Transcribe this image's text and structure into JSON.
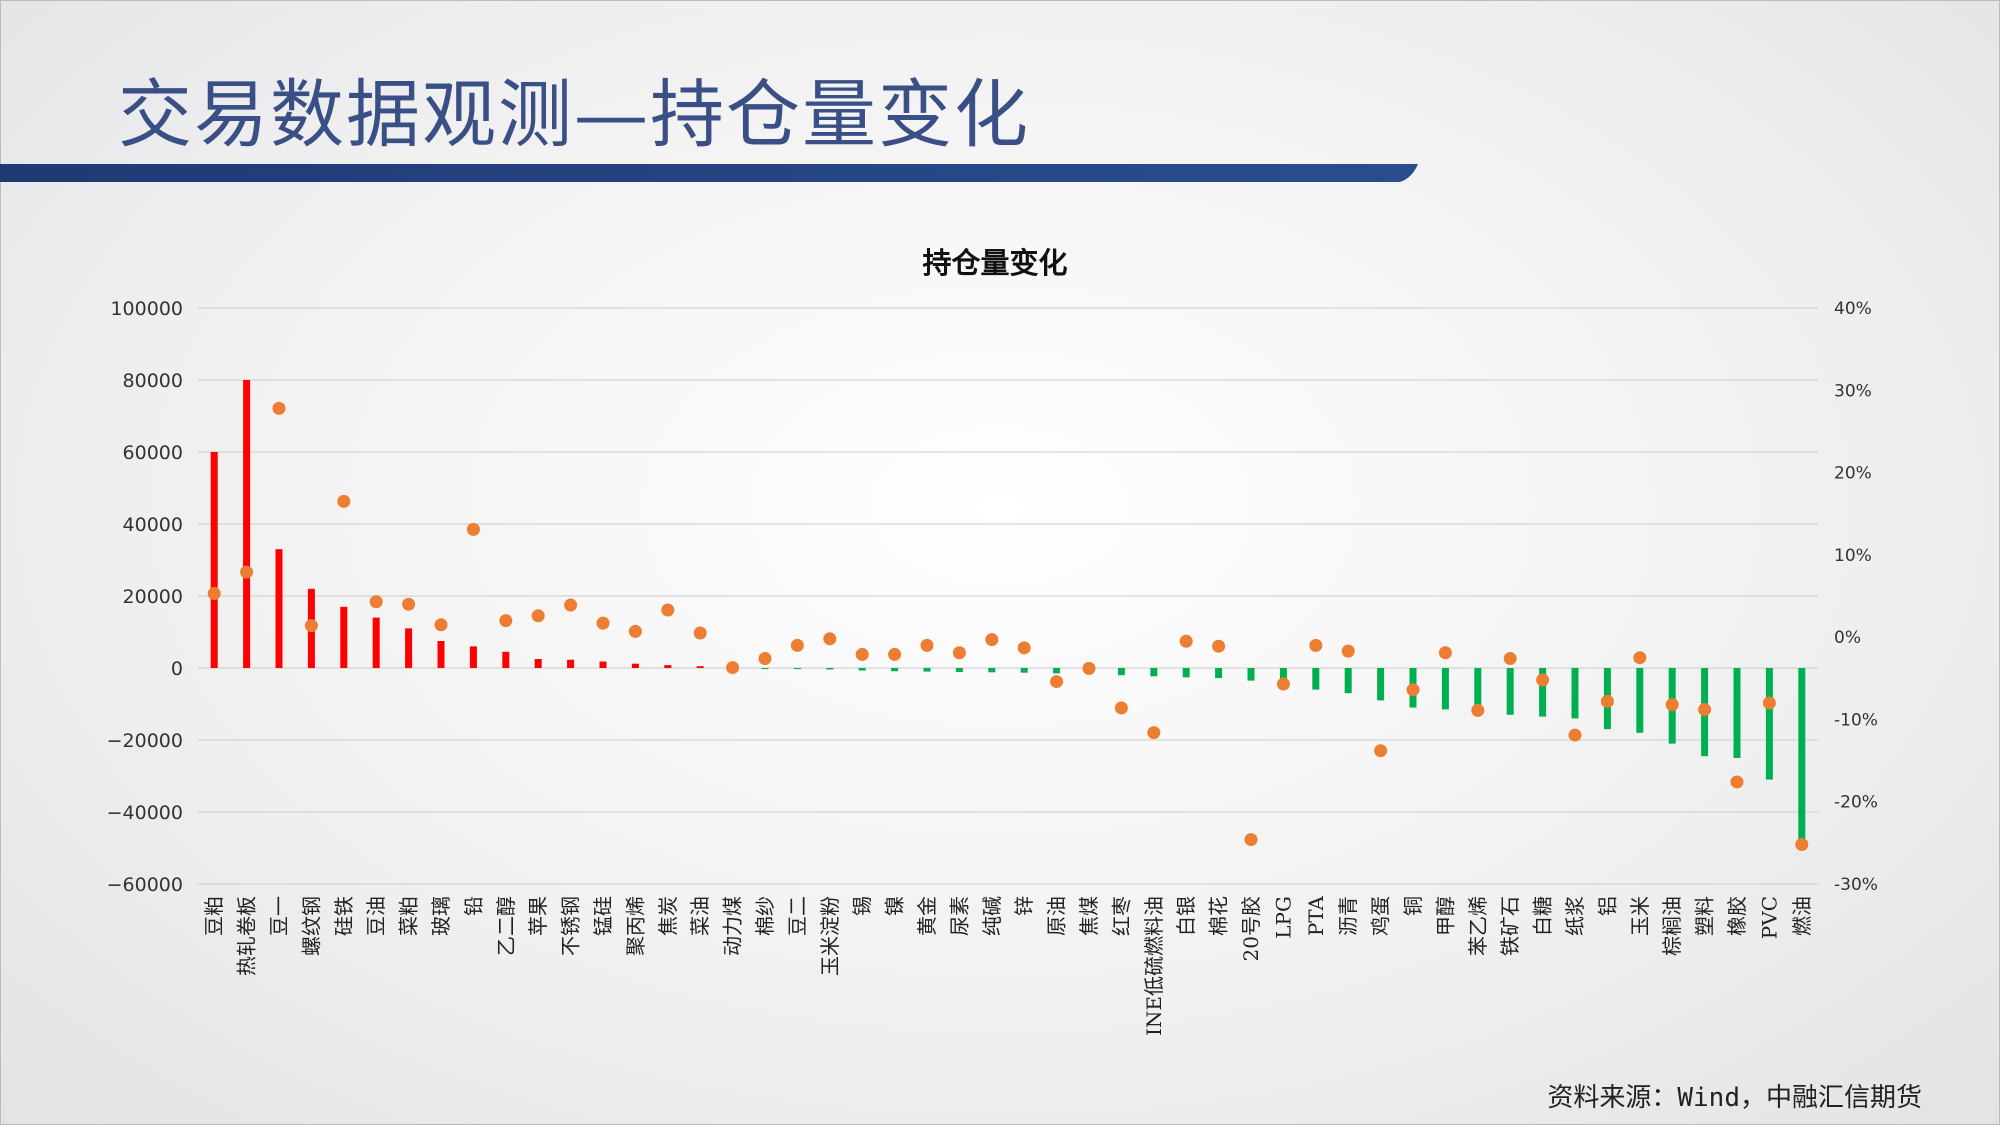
{
  "slide": {
    "title": "交易数据观测—持仓量变化",
    "source": "资料来源：Wind，中融汇信期货"
  },
  "colors": {
    "positive_bar": "#ff0000",
    "negative_bar": "#00b050",
    "dot": "#ed7d31",
    "title": "#3a4f86",
    "rule": "#1f3a73"
  },
  "chart_data": {
    "type": "bar",
    "title": "持仓量变化",
    "categories": [
      "豆粕",
      "热轧卷板",
      "豆一",
      "螺纹钢",
      "硅铁",
      "豆油",
      "菜粕",
      "玻璃",
      "铅",
      "乙二醇",
      "苹果",
      "不锈钢",
      "锰硅",
      "聚丙烯",
      "焦炭",
      "菜油",
      "动力煤",
      "棉纱",
      "豆二",
      "玉米淀粉",
      "锡",
      "镍",
      "黄金",
      "尿素",
      "纯碱",
      "锌",
      "原油",
      "焦煤",
      "红枣",
      "INE低硫燃料油",
      "白银",
      "棉花",
      "20号胶",
      "LPG",
      "PTA",
      "沥青",
      "鸡蛋",
      "铜",
      "甲醇",
      "苯乙烯",
      "铁矿石",
      "白糖",
      "纸浆",
      "铝",
      "玉米",
      "棕榈油",
      "塑料",
      "橡胶",
      "PVC",
      "燃油"
    ],
    "series": [
      {
        "axis": "left",
        "style": "bar",
        "values": [
          60000,
          80000,
          33000,
          22000,
          17000,
          14000,
          11000,
          7500,
          6000,
          4500,
          2500,
          2300,
          1800,
          1200,
          800,
          500,
          -200,
          -300,
          -300,
          -400,
          -700,
          -900,
          -1000,
          -1100,
          -1200,
          -1300,
          -1500,
          -1700,
          -2000,
          -2300,
          -2600,
          -2800,
          -3500,
          -4500,
          -6000,
          -7000,
          -9000,
          -11000,
          -11500,
          -12000,
          -13000,
          -13500,
          -14000,
          -17000,
          -18000,
          -21000,
          -24500,
          -25000,
          -31000,
          -49000
        ]
      },
      {
        "axis": "right",
        "style": "dot",
        "values": [
          5.3,
          7.9,
          27.8,
          1.4,
          16.5,
          4.3,
          4.0,
          1.5,
          13.1,
          2.0,
          2.6,
          3.9,
          1.7,
          0.7,
          3.3,
          0.5,
          -3.7,
          -2.6,
          -1.0,
          -0.2,
          -2.1,
          -2.1,
          -1.0,
          -1.9,
          -0.3,
          -1.3,
          -5.4,
          -3.8,
          -8.6,
          -11.6,
          -0.5,
          -1.1,
          -24.6,
          -5.7,
          -1.0,
          -1.7,
          -13.8,
          -6.4,
          -1.9,
          -8.9,
          -2.6,
          -5.2,
          -11.9,
          -7.8,
          -2.5,
          -8.2,
          -8.8,
          -17.6,
          -8.0,
          -25.2
        ]
      }
    ],
    "ylim": [
      -60000,
      100000
    ],
    "yticks": [
      100000,
      80000,
      60000,
      40000,
      20000,
      0,
      -20000,
      -40000,
      -60000
    ],
    "ytick_labels": [
      "100000",
      "80000",
      "60000",
      "40000",
      "20000",
      "0",
      "−20000",
      "−40000",
      "−60000"
    ],
    "y2lim": [
      -30,
      40
    ],
    "y2ticks": [
      40,
      30,
      20,
      10,
      0,
      -10,
      -20,
      -30
    ],
    "y2tick_labels": [
      "40%",
      "30%",
      "20%",
      "10%",
      "0%",
      "-10%",
      "-20%",
      "-30%"
    ],
    "grid": true,
    "legend": "none"
  }
}
